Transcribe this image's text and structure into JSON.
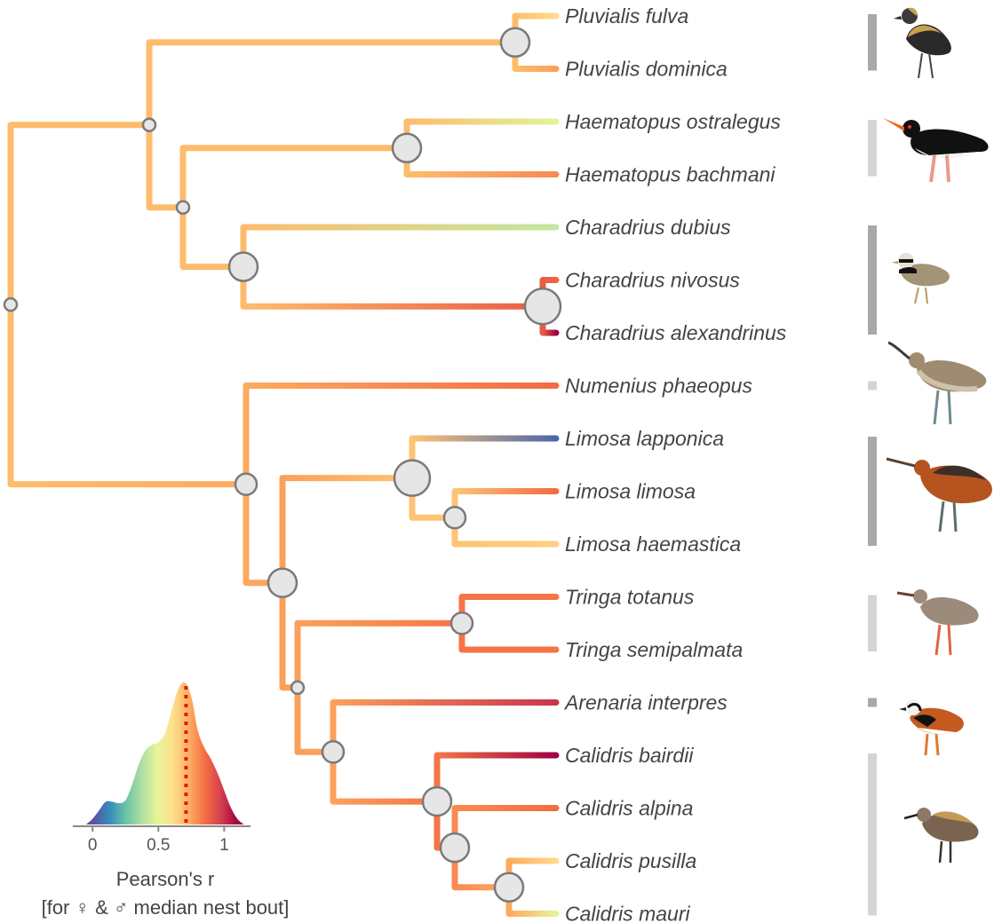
{
  "tree": {
    "tips": [
      {
        "id": "t1",
        "name": "Pluvialis fulva",
        "r": 0.62
      },
      {
        "id": "t2",
        "name": "Pluvialis dominica",
        "r": 0.76
      },
      {
        "id": "t3",
        "name": "Haematopus ostralegus",
        "r": 0.48
      },
      {
        "id": "t4",
        "name": "Haematopus bachmani",
        "r": 0.8
      },
      {
        "id": "t5",
        "name": "Charadrius dubius",
        "r": 0.42
      },
      {
        "id": "t6",
        "name": "Charadrius nivosus",
        "r": 0.88
      },
      {
        "id": "t7",
        "name": "Charadrius alexandrinus",
        "r": 1.1
      },
      {
        "id": "t8",
        "name": "Numenius phaeopus",
        "r": 0.86
      },
      {
        "id": "t9",
        "name": "Limosa lapponica",
        "r": 0.05
      },
      {
        "id": "t10",
        "name": "Limosa limosa",
        "r": 0.86
      },
      {
        "id": "t11",
        "name": "Limosa haemastica",
        "r": 0.65
      },
      {
        "id": "t12",
        "name": "Tringa totanus",
        "r": 0.84
      },
      {
        "id": "t13",
        "name": "Tringa semipalmata",
        "r": 0.84
      },
      {
        "id": "t14",
        "name": "Arenaria interpres",
        "r": 1.0
      },
      {
        "id": "t15",
        "name": "Calidris bairdii",
        "r": 1.1
      },
      {
        "id": "t16",
        "name": "Calidris alpina",
        "r": 0.86
      },
      {
        "id": "t17",
        "name": "Calidris pusilla",
        "r": 0.62
      },
      {
        "id": "t18",
        "name": "Calidris mauri",
        "r": 0.5
      }
    ],
    "nodes": [
      {
        "id": "n_root",
        "children": [
          "n_char",
          "n_scol"
        ],
        "r": 0.7,
        "support": "small"
      },
      {
        "id": "n_char",
        "children": [
          "n_pluv",
          "n_hc"
        ],
        "r": 0.7,
        "support": "small"
      },
      {
        "id": "n_pluv",
        "children": [
          "t1",
          "t2"
        ],
        "r": 0.7,
        "support": "large"
      },
      {
        "id": "n_hc",
        "children": [
          "n_haem",
          "n_chd"
        ],
        "r": 0.7,
        "support": "small"
      },
      {
        "id": "n_haem",
        "children": [
          "t3",
          "t4"
        ],
        "r": 0.7,
        "support": "large"
      },
      {
        "id": "n_chd",
        "children": [
          "t5",
          "n_chn"
        ],
        "r": 0.7,
        "support": "large"
      },
      {
        "id": "n_chn",
        "children": [
          "t6",
          "t7"
        ],
        "r": 0.9,
        "support": "xlarge"
      },
      {
        "id": "n_scol",
        "children": [
          "t8",
          "n_lc"
        ],
        "r": 0.74,
        "support": "medium"
      },
      {
        "id": "n_lc",
        "children": [
          "n_lim",
          "n_tc"
        ],
        "r": 0.76,
        "support": "large"
      },
      {
        "id": "n_lim",
        "children": [
          "t9",
          "n_lim2"
        ],
        "r": 0.68,
        "support": "xlarge"
      },
      {
        "id": "n_lim2",
        "children": [
          "t10",
          "t11"
        ],
        "r": 0.68,
        "support": "medium"
      },
      {
        "id": "n_tc",
        "children": [
          "n_tri",
          "n_ac"
        ],
        "r": 0.76,
        "support": "small"
      },
      {
        "id": "n_tri",
        "children": [
          "t12",
          "t13"
        ],
        "r": 0.84,
        "support": "medium"
      },
      {
        "id": "n_ac",
        "children": [
          "t14",
          "n_cal"
        ],
        "r": 0.76,
        "support": "medium"
      },
      {
        "id": "n_cal",
        "children": [
          "t15",
          "n_cal2"
        ],
        "r": 0.84,
        "support": "large"
      },
      {
        "id": "n_cal2",
        "children": [
          "t16",
          "n_cal3"
        ],
        "r": 0.8,
        "support": "large"
      },
      {
        "id": "n_cal3",
        "children": [
          "t17",
          "t18"
        ],
        "r": 0.74,
        "support": "large"
      }
    ]
  },
  "groups": [
    {
      "name": "pluvialis",
      "tips": [
        "t1",
        "t2"
      ],
      "shade": "#a8a8a8",
      "icon": "golden-plover-icon"
    },
    {
      "name": "haematopus",
      "tips": [
        "t3",
        "t4"
      ],
      "shade": "#d4d4d4",
      "icon": "oystercatcher-icon"
    },
    {
      "name": "charadrius",
      "tips": [
        "t5",
        "t7"
      ],
      "shade": "#a8a8a8",
      "icon": "ringed-plover-icon"
    },
    {
      "name": "numenius",
      "tips": [
        "t8",
        "t8"
      ],
      "shade": "#d4d4d4",
      "icon": "whimbrel-icon"
    },
    {
      "name": "limosa",
      "tips": [
        "t9",
        "t11"
      ],
      "shade": "#a8a8a8",
      "icon": "godwit-icon"
    },
    {
      "name": "tringa",
      "tips": [
        "t12",
        "t13"
      ],
      "shade": "#d4d4d4",
      "icon": "redshank-icon"
    },
    {
      "name": "arenaria",
      "tips": [
        "t14",
        "t14"
      ],
      "shade": "#a8a8a8",
      "icon": "turnstone-icon"
    },
    {
      "name": "calidris",
      "tips": [
        "t15",
        "t18"
      ],
      "shade": "#d4d4d4",
      "icon": "dunlin-icon"
    }
  ],
  "legend": {
    "ticks": [
      {
        "v": 0,
        "label": "0"
      },
      {
        "v": 0.5,
        "label": "0.5"
      },
      {
        "v": 1,
        "label": "1"
      }
    ],
    "xrange": [
      -0.15,
      1.2
    ],
    "median": 0.71,
    "title": "Pearson's r",
    "subtitle": "[for ♀ & ♂ median nest bout]",
    "density": [
      [
        -0.05,
        0.0
      ],
      [
        0.0,
        0.04
      ],
      [
        0.05,
        0.1
      ],
      [
        0.1,
        0.16
      ],
      [
        0.15,
        0.16
      ],
      [
        0.2,
        0.15
      ],
      [
        0.25,
        0.17
      ],
      [
        0.3,
        0.28
      ],
      [
        0.35,
        0.42
      ],
      [
        0.4,
        0.52
      ],
      [
        0.45,
        0.56
      ],
      [
        0.5,
        0.58
      ],
      [
        0.55,
        0.64
      ],
      [
        0.6,
        0.8
      ],
      [
        0.65,
        0.95
      ],
      [
        0.7,
        1.0
      ],
      [
        0.75,
        0.9
      ],
      [
        0.8,
        0.66
      ],
      [
        0.85,
        0.54
      ],
      [
        0.9,
        0.46
      ],
      [
        0.95,
        0.36
      ],
      [
        1.0,
        0.24
      ],
      [
        1.05,
        0.12
      ],
      [
        1.1,
        0.04
      ],
      [
        1.15,
        0.0
      ]
    ]
  },
  "palette": [
    "#5e4fa2",
    "#3288bd",
    "#66c2a5",
    "#abdda4",
    "#e6f598",
    "#fee08b",
    "#fdae61",
    "#f46d43",
    "#d53e4f",
    "#9e0142"
  ]
}
